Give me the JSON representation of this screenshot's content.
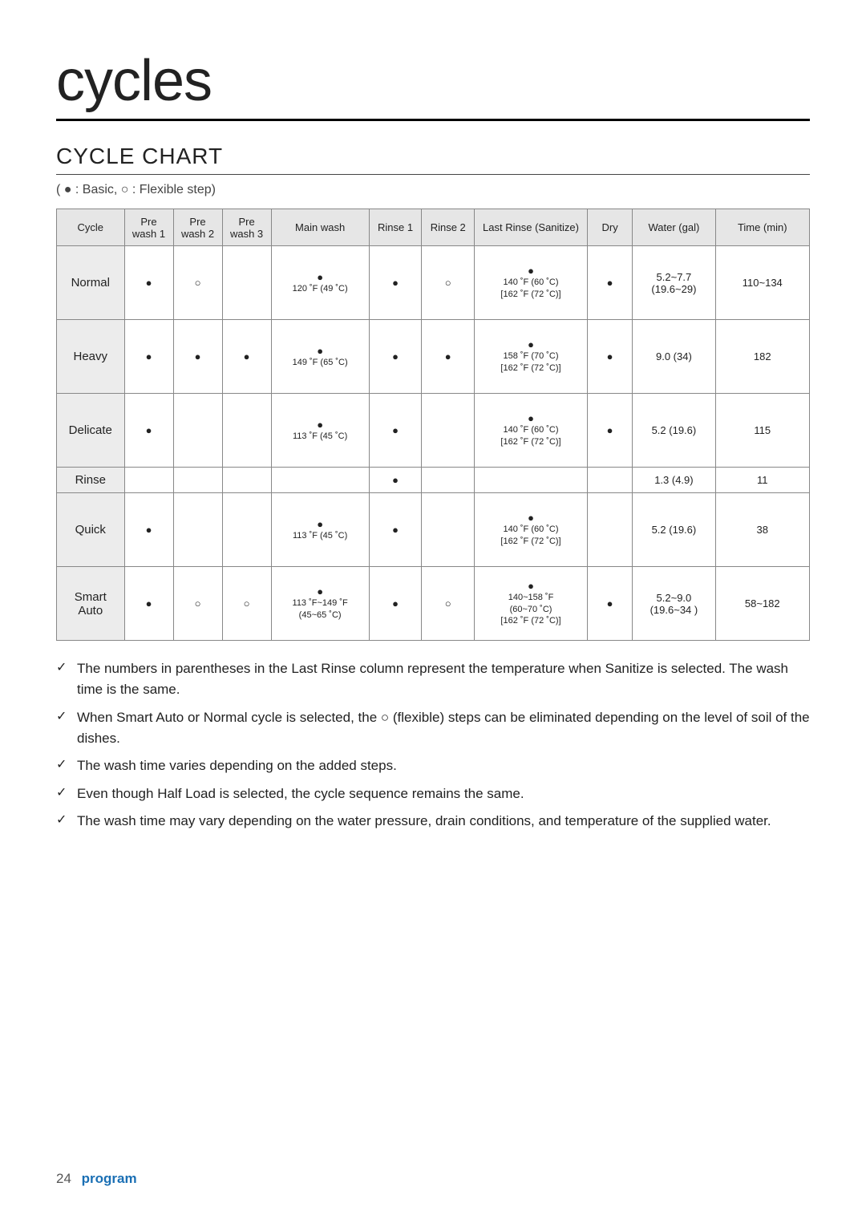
{
  "title": "cycles",
  "section": "CYCLE CHART",
  "legend": "( ● : Basic,  ○ : Flexible step)",
  "marks": {
    "basic": "●",
    "flex": "○"
  },
  "columns": [
    "Cycle",
    "Pre wash 1",
    "Pre wash 2",
    "Pre wash 3",
    "Main wash",
    "Rinse 1",
    "Rinse 2",
    "Last Rinse (Sanitize)",
    "Dry",
    "Water (gal)",
    "Time (min)"
  ],
  "col_widths": [
    "9%",
    "6.5%",
    "6.5%",
    "6.5%",
    "13%",
    "7%",
    "7%",
    "15%",
    "6%",
    "11%",
    "12.5%"
  ],
  "rows": [
    {
      "cycle": "Normal",
      "pre1": "●",
      "pre2": "○",
      "pre3": "",
      "main": {
        "mark": "●",
        "line": "120 ˚F (49 ˚C)"
      },
      "r1": "●",
      "r2": "○",
      "last": {
        "mark": "●",
        "l1": "140 ˚F (60 ˚C)",
        "l2": "[162 ˚F (72 ˚C)]"
      },
      "dry": "●",
      "water": "5.2~7.7\n(19.6~29)",
      "time": "110~134",
      "h": "tall"
    },
    {
      "cycle": "Heavy",
      "pre1": "●",
      "pre2": "●",
      "pre3": "●",
      "main": {
        "mark": "●",
        "line": "149 ˚F (65 ˚C)"
      },
      "r1": "●",
      "r2": "●",
      "last": {
        "mark": "●",
        "l1": "158 ˚F (70 ˚C)",
        "l2": "[162 ˚F (72 ˚C)]"
      },
      "dry": "●",
      "water": "9.0 (34)",
      "time": "182",
      "h": "tall"
    },
    {
      "cycle": "Delicate",
      "pre1": "●",
      "pre2": "",
      "pre3": "",
      "main": {
        "mark": "●",
        "line": "113 ˚F (45 ˚C)"
      },
      "r1": "●",
      "r2": "",
      "last": {
        "mark": "●",
        "l1": "140 ˚F (60 ˚C)",
        "l2": "[162 ˚F (72 ˚C)]"
      },
      "dry": "●",
      "water": "5.2 (19.6)",
      "time": "115",
      "h": "tall"
    },
    {
      "cycle": "Rinse",
      "pre1": "",
      "pre2": "",
      "pre3": "",
      "main": {
        "mark": "",
        "line": ""
      },
      "r1": "●",
      "r2": "",
      "last": {
        "mark": "",
        "l1": "",
        "l2": ""
      },
      "dry": "",
      "water": "1.3 (4.9)",
      "time": "11",
      "h": "short"
    },
    {
      "cycle": "Quick",
      "pre1": "●",
      "pre2": "",
      "pre3": "",
      "main": {
        "mark": "●",
        "line": "113 ˚F (45 ˚C)"
      },
      "r1": "●",
      "r2": "",
      "last": {
        "mark": "●",
        "l1": "140 ˚F (60 ˚C)",
        "l2": "[162 ˚F (72 ˚C)]"
      },
      "dry": "",
      "water": "5.2 (19.6)",
      "time": "38",
      "h": "tall"
    },
    {
      "cycle": "Smart\nAuto",
      "pre1": "●",
      "pre2": "○",
      "pre3": "○",
      "main": {
        "mark": "●",
        "line": "113 ˚F~149 ˚F\n(45~65 ˚C)"
      },
      "r1": "●",
      "r2": "○",
      "last": {
        "mark": "●",
        "l1": "140~158 ˚F\n(60~70 ˚C)",
        "l2": "[162 ˚F (72 ˚C)]"
      },
      "dry": "●",
      "water": "5.2~9.0\n(19.6~34 )",
      "time": "58~182",
      "h": "tall"
    }
  ],
  "notes": [
    "The numbers in parentheses in the Last Rinse column represent the temperature when Sanitize is selected. The wash time is the same.",
    "When Smart Auto or Normal cycle is selected, the ○ (flexible) steps can be eliminated depending on the level of soil of the dishes.",
    "The wash time varies depending on the added steps.",
    "Even though Half Load is selected, the cycle sequence remains the same.",
    "The wash time may vary depending on the water pressure, drain conditions, and temperature of the supplied water."
  ],
  "footer": {
    "page": "24",
    "name": "program"
  }
}
